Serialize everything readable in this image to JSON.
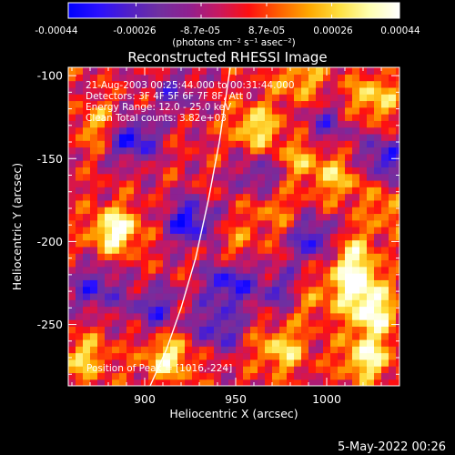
{
  "colorbar": {
    "tick_labels": [
      "-0.00044",
      "-0.00026",
      "-8.7e-05",
      "8.7e-05",
      "0.00026",
      "0.00044"
    ],
    "units": "(photons cm⁻² s⁻¹ asec⁻²)",
    "range": [
      -0.00044,
      0.00044
    ],
    "colors": [
      "#0000ff",
      "#2a10ff",
      "#5020c8",
      "#7030a0",
      "#902090",
      "#c81860",
      "#ff1010",
      "#ff6000",
      "#ffa800",
      "#ffe040",
      "#ffffb0",
      "#ffffff"
    ]
  },
  "chart_data": {
    "type": "heatmap",
    "title": "Reconstructed RHESSI Image",
    "xlabel": "Heliocentric X (arcsec)",
    "ylabel": "Heliocentric Y (arcsec)",
    "xlim": [
      858,
      1040
    ],
    "ylim": [
      -287,
      -95
    ],
    "x_ticks": [
      900,
      950,
      1000
    ],
    "y_ticks": [
      -100,
      -150,
      -200,
      -250
    ],
    "annotations": [
      "21-Aug-2003 00:25:44.000 to 00:31:44.000",
      "Detectors: 3F 4F 5F 6F 7F 8F, Att 0",
      "Energy Range: 12.0 - 25.0 keV",
      "Clean     Total counts: 3.82e+03"
    ],
    "peak_label": "Position of Peak = [1016,-224]",
    "peak": [
      1016,
      -224
    ],
    "limb_curve": [
      [
        903,
        -287
      ],
      [
        912,
        -265
      ],
      [
        920,
        -240
      ],
      [
        928,
        -210
      ],
      [
        935,
        -175
      ],
      [
        941,
        -140
      ],
      [
        947,
        -95
      ]
    ],
    "hot_spots": [
      {
        "x": 884,
        "y": -193,
        "v": 0.00044
      },
      {
        "x": 1016,
        "y": -224,
        "v": 0.00044
      },
      {
        "x": 1025,
        "y": -243,
        "v": 0.0004
      },
      {
        "x": 1022,
        "y": -270,
        "v": 0.00038
      },
      {
        "x": 913,
        "y": -270,
        "v": 0.00034
      },
      {
        "x": 961,
        "y": -131,
        "v": 0.00032
      },
      {
        "x": 1026,
        "y": -113,
        "v": 0.0003
      },
      {
        "x": 975,
        "y": -265,
        "v": 0.0003
      },
      {
        "x": 1012,
        "y": -205,
        "v": 0.00026
      },
      {
        "x": 1007,
        "y": -162,
        "v": 0.00024
      },
      {
        "x": 875,
        "y": -130,
        "v": 0.00022
      },
      {
        "x": 867,
        "y": -270,
        "v": 0.00026
      },
      {
        "x": 985,
        "y": -102,
        "v": 0.00024
      },
      {
        "x": 986,
        "y": -150,
        "v": 0.00022
      },
      {
        "x": 990,
        "y": -235,
        "v": 0.00018
      },
      {
        "x": 950,
        "y": -200,
        "v": 0.00012
      },
      {
        "x": 970,
        "y": -180,
        "v": 0.00016
      },
      {
        "x": 1035,
        "y": -180,
        "v": 0.0002
      }
    ],
    "cold_spots": [
      {
        "x": 893,
        "y": -138,
        "v": -0.0004
      },
      {
        "x": 925,
        "y": -188,
        "v": -0.0004
      },
      {
        "x": 946,
        "y": -225,
        "v": -0.00036
      },
      {
        "x": 994,
        "y": -199,
        "v": -0.00036
      },
      {
        "x": 1032,
        "y": -150,
        "v": -0.00034
      },
      {
        "x": 873,
        "y": -228,
        "v": -0.0003
      },
      {
        "x": 940,
        "y": -252,
        "v": -0.0003
      },
      {
        "x": 905,
        "y": -240,
        "v": -0.00028
      },
      {
        "x": 975,
        "y": -230,
        "v": -0.00026
      },
      {
        "x": 1000,
        "y": -130,
        "v": -0.00022
      },
      {
        "x": 963,
        "y": -160,
        "v": -0.00024
      },
      {
        "x": 917,
        "y": -110,
        "v": -0.0002
      }
    ]
  },
  "timestamp": "5-May-2022 00:26"
}
